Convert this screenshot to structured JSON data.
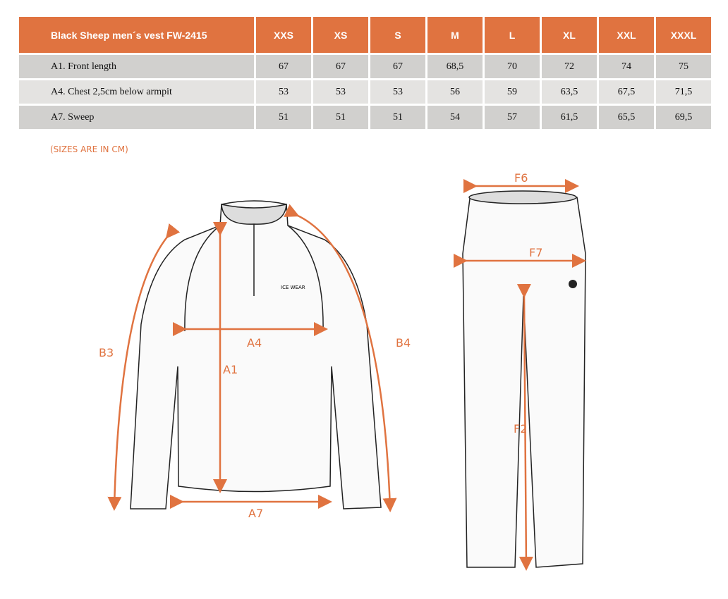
{
  "table": {
    "title": "Black Sheep men´s vest FW-2415",
    "sizes": [
      "XXS",
      "XS",
      "S",
      "M",
      "L",
      "XL",
      "XXL",
      "XXXL"
    ],
    "rows": [
      {
        "label": "A1. Front length",
        "values": [
          "67",
          "67",
          "67",
          "68,5",
          "70",
          "72",
          "74",
          "75"
        ]
      },
      {
        "label": "A4. Chest 2,5cm below armpit",
        "values": [
          "53",
          "53",
          "53",
          "56",
          "59",
          "63,5",
          "67,5",
          "71,5"
        ]
      },
      {
        "label": "A7. Sweep",
        "values": [
          "51",
          "51",
          "51",
          "54",
          "57",
          "61,5",
          "65,5",
          "69,5"
        ]
      }
    ]
  },
  "note": "(SIZES ARE IN CM)",
  "diagram": {
    "labels": {
      "a1": "A1",
      "a4": "A4",
      "a7": "A7",
      "b3": "B3",
      "b4": "B4",
      "f2": "F2",
      "f6": "F6",
      "f7": "F7"
    },
    "logo": "ICE WEAR",
    "accent": "#e07340"
  }
}
